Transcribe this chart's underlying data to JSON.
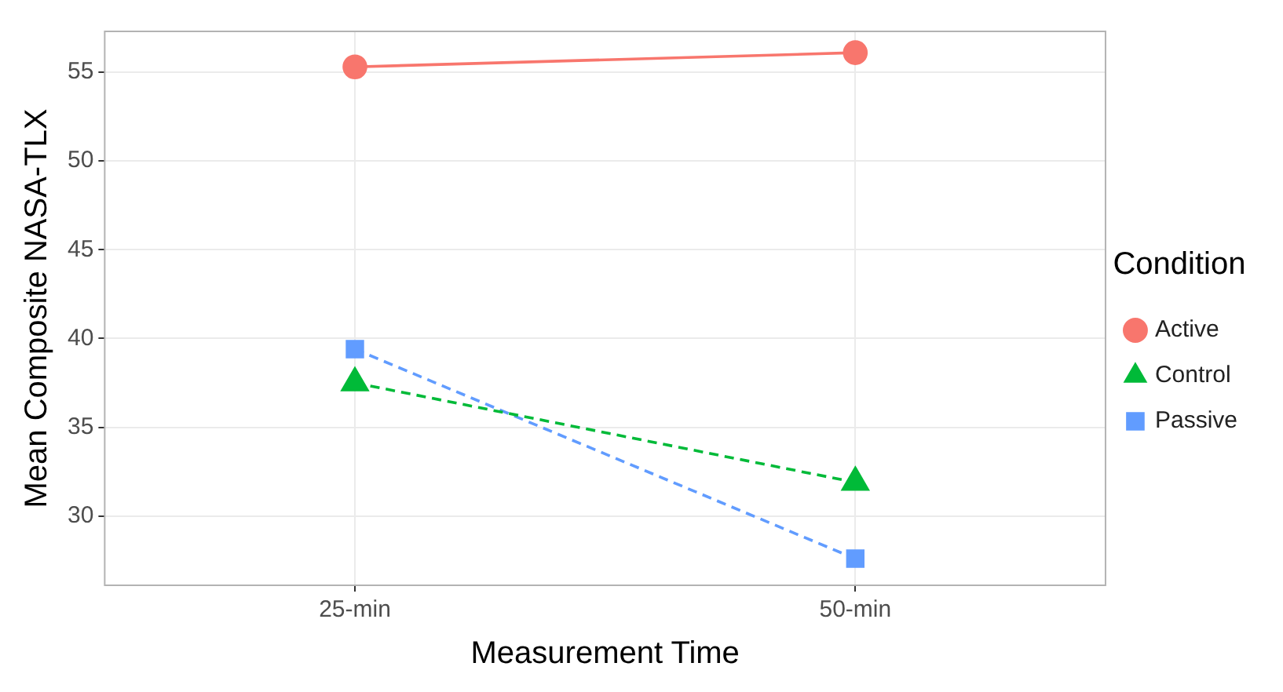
{
  "chart_data": {
    "type": "line",
    "xlabel": "Measurement Time",
    "ylabel": "Mean Composite NASA-TLX",
    "legend_title": "Condition",
    "categories": [
      "25-min",
      "50-min"
    ],
    "series": [
      {
        "name": "Active",
        "color": "#f8766d",
        "values": [
          55.3,
          56.1
        ],
        "marker": "circle",
        "line_style": "solid"
      },
      {
        "name": "Control",
        "color": "#00ba38",
        "values": [
          37.5,
          31.9
        ],
        "marker": "triangle",
        "line_style": "dashed"
      },
      {
        "name": "Passive",
        "color": "#619cff",
        "values": [
          39.4,
          27.6
        ],
        "marker": "square",
        "line_style": "dashed"
      }
    ],
    "ylim": [
      26.1,
      57.3
    ],
    "yticks": [
      30,
      35,
      40,
      45,
      50,
      55
    ],
    "grid": true,
    "legend": "right"
  }
}
